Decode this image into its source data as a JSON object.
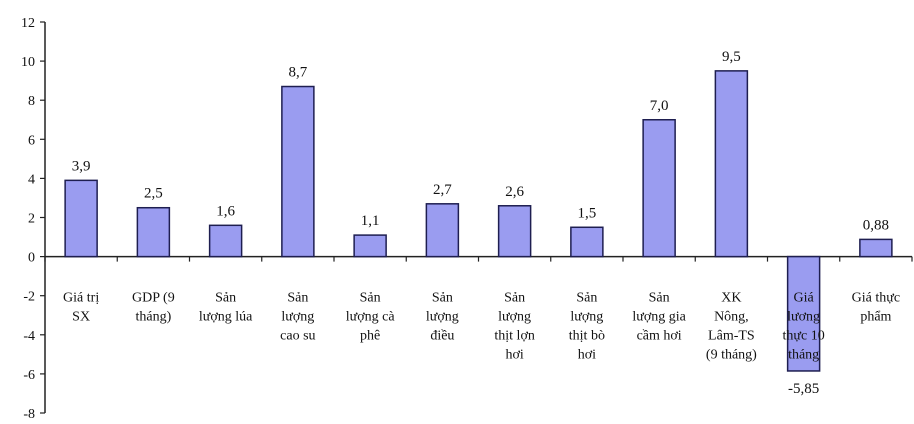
{
  "chart_data": {
    "type": "bar",
    "title": "",
    "xlabel": "",
    "ylabel": "",
    "ylim": [
      -8,
      12
    ],
    "yticks": [
      12,
      10,
      8,
      6,
      4,
      2,
      0,
      -2,
      -4,
      -6,
      -8
    ],
    "grid": false,
    "legend": "none",
    "bar_color": "#9a9cf0",
    "bar_stroke": "#1e1e50",
    "categories": [
      [
        "Giá trị",
        "SX"
      ],
      [
        "GDP (9",
        "tháng)"
      ],
      [
        "Sản",
        "lượng lúa"
      ],
      [
        "Sản",
        "lượng",
        "cao su"
      ],
      [
        "Sản",
        "lượng cà",
        "phê"
      ],
      [
        "Sản",
        "lượng",
        "điều"
      ],
      [
        "Sản",
        "lượng",
        "thịt lợn",
        "hơi"
      ],
      [
        "Sản",
        "lượng",
        "thịt bò",
        "hơi"
      ],
      [
        "Sản",
        "lượng gia",
        "cầm hơi"
      ],
      [
        "XK",
        "Nông,",
        "Lâm-TS",
        "(9 tháng)"
      ],
      [
        "Giá",
        "lương",
        "thực 10",
        "tháng"
      ],
      [
        "Giá thực",
        "phẩm"
      ]
    ],
    "values": [
      3.9,
      2.5,
      1.6,
      8.7,
      1.1,
      2.7,
      2.6,
      1.5,
      7.0,
      9.5,
      -5.85,
      0.88
    ],
    "data_labels": [
      "3,9",
      "2,5",
      "1,6",
      "8,7",
      "1,1",
      "2,7",
      "2,6",
      "1,5",
      "7,0",
      "9,5",
      "-5,85",
      "0,88"
    ]
  }
}
